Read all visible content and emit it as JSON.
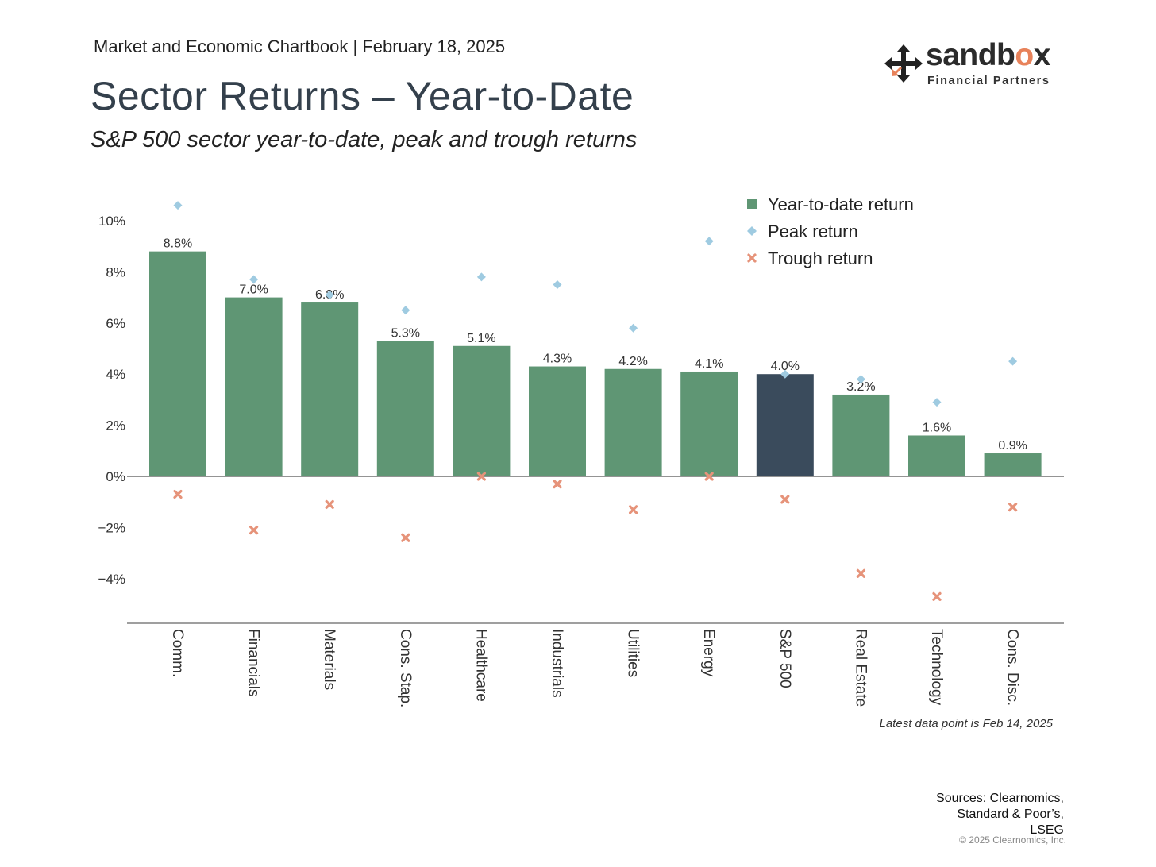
{
  "header": {
    "chartbook": "Market and Economic Chartbook | February 18, 2025",
    "title": "Sector Returns – Year-to-Date",
    "subtitle": "S&P 500 sector year-to-date, peak and trough returns"
  },
  "logo": {
    "word_main": "sandb",
    "word_accent": "o",
    "word_end": "x",
    "tagline": "Financial Partners"
  },
  "colors": {
    "bar": "#5f9674",
    "bar_highlight": "#3a4b5c",
    "peak": "#9fcbe1",
    "trough": "#e6937a",
    "accent": "#e8825a"
  },
  "chart_data": {
    "type": "bar",
    "categories": [
      "Comm.",
      "Financials",
      "Materials",
      "Cons. Stap.",
      "Healthcare",
      "Industrials",
      "Utilities",
      "Energy",
      "S&P 500",
      "Real Estate",
      "Technology",
      "Cons. Disc."
    ],
    "highlight_category": "S&P 500",
    "series": [
      {
        "name": "Year-to-date return",
        "marker": "bar",
        "values": [
          8.8,
          7.0,
          6.8,
          5.3,
          5.1,
          4.3,
          4.2,
          4.1,
          4.0,
          3.2,
          1.6,
          0.9
        ]
      },
      {
        "name": "Peak return",
        "marker": "diamond",
        "values": [
          10.6,
          7.7,
          7.1,
          6.5,
          7.8,
          7.5,
          5.8,
          9.2,
          4.0,
          3.8,
          2.9,
          4.5
        ]
      },
      {
        "name": "Trough return",
        "marker": "x",
        "values": [
          -0.7,
          -2.1,
          -1.1,
          -2.4,
          0.0,
          -0.3,
          -1.3,
          0.0,
          -0.9,
          -3.8,
          -4.7,
          -1.2
        ]
      }
    ],
    "data_labels": [
      "8.8%",
      "7.0%",
      "6.8%",
      "5.3%",
      "5.1%",
      "4.3%",
      "4.2%",
      "4.1%",
      "4.0%",
      "3.2%",
      "1.6%",
      "0.9%"
    ],
    "y_ticks": [
      10,
      8,
      6,
      4,
      2,
      0,
      -2,
      -4
    ],
    "y_tick_labels": [
      "10%",
      "8%",
      "6%",
      "4%",
      "2%",
      "0%",
      "−2%",
      "−4%"
    ],
    "ylim": [
      -5.8,
      11
    ],
    "grid": false,
    "legend_position": "top-right"
  },
  "footnote": "Latest data point is Feb 14, 2025",
  "sources": [
    "Sources: Clearnomics,",
    "Standard & Poor’s,",
    "LSEG"
  ],
  "copyright": "© 2025 Clearnomics, Inc."
}
